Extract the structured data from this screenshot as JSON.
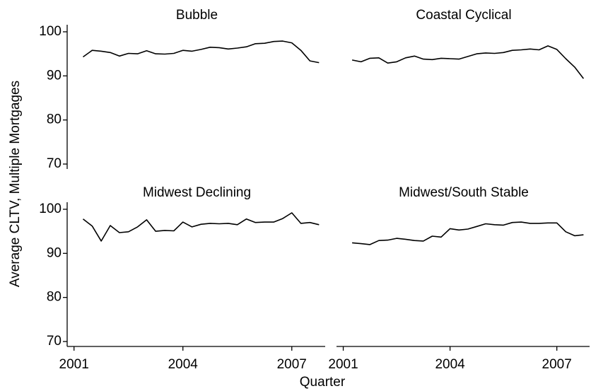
{
  "chart_data": {
    "type": "line",
    "ylabel": "Average CLTV, Multiple Mortgages",
    "xlabel": "Quarter",
    "x": [
      2001.25,
      2001.5,
      2001.75,
      2002,
      2002.25,
      2002.5,
      2002.75,
      2003,
      2003.25,
      2003.5,
      2003.75,
      2004,
      2004.25,
      2004.5,
      2004.75,
      2005,
      2005.25,
      2005.5,
      2005.75,
      2006,
      2006.25,
      2006.5,
      2006.75,
      2007,
      2007.25,
      2007.5,
      2007.75
    ],
    "xlim": [
      2000.85,
      2007.92
    ],
    "xticks": [
      2001,
      2004,
      2007
    ],
    "ylim": [
      69.2,
      101.6
    ],
    "yticks": [
      70,
      80,
      90,
      100
    ],
    "panels": [
      {
        "title": "Bubble",
        "color": "#000000",
        "values": [
          94.3,
          95.8,
          95.6,
          95.3,
          94.5,
          95.1,
          95.0,
          95.7,
          95.0,
          94.95,
          95.1,
          95.8,
          95.6,
          96.0,
          96.5,
          96.4,
          96.1,
          96.3,
          96.6,
          97.3,
          97.4,
          97.8,
          97.9,
          97.5,
          95.8,
          93.4,
          93.0
        ]
      },
      {
        "title": "Coastal Cyclical",
        "color": "#000000",
        "values": [
          93.6,
          93.2,
          94.0,
          94.1,
          92.9,
          93.2,
          94.1,
          94.5,
          93.8,
          93.7,
          94.0,
          93.9,
          93.8,
          94.4,
          95.0,
          95.2,
          95.1,
          95.3,
          95.8,
          95.9,
          96.1,
          95.9,
          96.8,
          96.0,
          93.9,
          92.0,
          89.4
        ]
      },
      {
        "title": "Midwest Declining",
        "color": "#000000",
        "values": [
          97.8,
          96.2,
          92.8,
          96.3,
          94.7,
          94.9,
          96.0,
          97.6,
          95.0,
          95.2,
          95.1,
          97.1,
          96.0,
          96.6,
          96.8,
          96.7,
          96.8,
          96.5,
          97.8,
          97.0,
          97.1,
          97.1,
          97.9,
          99.2,
          96.8,
          97.0,
          96.5
        ]
      },
      {
        "title": "Midwest/South Stable",
        "color": "#000000",
        "values": [
          92.4,
          92.2,
          92.0,
          92.9,
          93.0,
          93.4,
          93.2,
          92.9,
          92.8,
          93.9,
          93.7,
          95.6,
          95.3,
          95.5,
          96.1,
          96.7,
          96.5,
          96.4,
          97.0,
          97.1,
          96.8,
          96.8,
          96.9,
          96.9,
          94.9,
          94.0,
          94.2
        ]
      }
    ]
  }
}
